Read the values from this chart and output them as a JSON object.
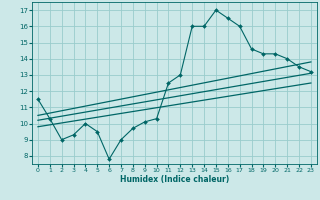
{
  "xlabel": "Humidex (Indice chaleur)",
  "bg_color": "#cce8e8",
  "grid_color": "#99cccc",
  "line_color": "#006666",
  "xlim": [
    -0.5,
    23.5
  ],
  "ylim": [
    7.5,
    17.5
  ],
  "xticks": [
    0,
    1,
    2,
    3,
    4,
    5,
    6,
    7,
    8,
    9,
    10,
    11,
    12,
    13,
    14,
    15,
    16,
    17,
    18,
    19,
    20,
    21,
    22,
    23
  ],
  "yticks": [
    8,
    9,
    10,
    11,
    12,
    13,
    14,
    15,
    16,
    17
  ],
  "main_x": [
    0,
    1,
    2,
    3,
    4,
    5,
    6,
    7,
    8,
    9,
    10,
    11,
    12,
    13,
    14,
    15,
    16,
    17,
    18,
    19,
    20,
    21,
    22,
    23
  ],
  "main_y": [
    11.5,
    10.3,
    9.0,
    9.3,
    10.0,
    9.5,
    7.8,
    9.0,
    9.7,
    10.1,
    10.3,
    12.5,
    13.0,
    16.0,
    16.0,
    17.0,
    16.5,
    16.0,
    14.6,
    14.3,
    14.3,
    14.0,
    13.5,
    13.2
  ],
  "trend1_x": [
    0,
    23
  ],
  "trend1_y": [
    10.5,
    13.8
  ],
  "trend2_x": [
    0,
    23
  ],
  "trend2_y": [
    10.2,
    13.1
  ],
  "trend3_x": [
    0,
    23
  ],
  "trend3_y": [
    9.8,
    12.5
  ]
}
